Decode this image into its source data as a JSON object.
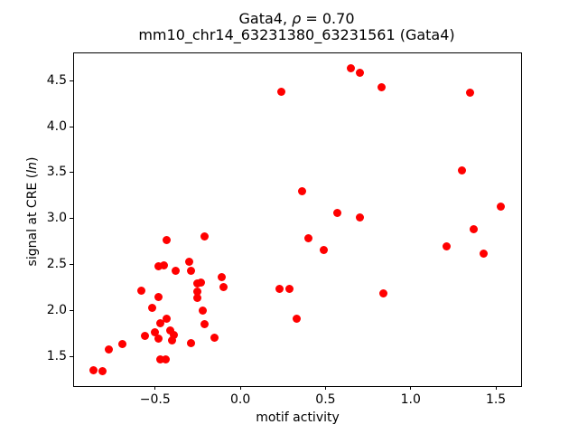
{
  "figure": {
    "title_prefix": "Gata4, ",
    "title_rho": "ρ",
    "title_eq": " = 0.70",
    "title_line2": "mm10_chr14_63231380_63231561 (Gata4)",
    "xlabel": "motif activity",
    "ylabel_prefix": "signal at CRE (",
    "ylabel_italic": "ln",
    "ylabel_suffix": ")"
  },
  "chart_data": {
    "type": "scatter",
    "title": "Gata4, ρ = 0.70",
    "subtitle": "mm10_chr14_63231380_63231561 (Gata4)",
    "xlabel": "motif activity",
    "ylabel": "signal at CRE (ln)",
    "correlation_rho": 0.7,
    "xlim": [
      -0.976,
      1.648
    ],
    "ylim": [
      1.183,
      4.803
    ],
    "x_ticks": [
      -0.5,
      0.0,
      0.5,
      1.0,
      1.5
    ],
    "y_ticks": [
      1.5,
      2.0,
      2.5,
      3.0,
      3.5,
      4.0,
      4.5
    ],
    "grid": false,
    "legend": false,
    "marker_color": "#ff0000",
    "points": [
      [
        -0.43,
        2.77
      ],
      [
        -0.21,
        2.81
      ],
      [
        -0.48,
        2.48
      ],
      [
        -0.45,
        2.49
      ],
      [
        -0.38,
        2.43
      ],
      [
        -0.3,
        2.53
      ],
      [
        -0.29,
        2.43
      ],
      [
        -0.25,
        2.29
      ],
      [
        -0.23,
        2.3
      ],
      [
        -0.25,
        2.21
      ],
      [
        -0.25,
        2.14
      ],
      [
        -0.11,
        2.36
      ],
      [
        -0.1,
        2.26
      ],
      [
        -0.58,
        2.22
      ],
      [
        -0.48,
        2.15
      ],
      [
        -0.52,
        2.03
      ],
      [
        -0.22,
        2.0
      ],
      [
        -0.43,
        1.91
      ],
      [
        -0.47,
        1.86
      ],
      [
        -0.21,
        1.85
      ],
      [
        -0.41,
        1.78
      ],
      [
        -0.39,
        1.73
      ],
      [
        -0.4,
        1.67
      ],
      [
        -0.5,
        1.76
      ],
      [
        -0.48,
        1.69
      ],
      [
        -0.56,
        1.72
      ],
      [
        -0.29,
        1.65
      ],
      [
        -0.15,
        1.7
      ],
      [
        -0.69,
        1.64
      ],
      [
        -0.77,
        1.58
      ],
      [
        -0.47,
        1.47
      ],
      [
        -0.44,
        1.47
      ],
      [
        -0.86,
        1.35
      ],
      [
        -0.81,
        1.34
      ],
      [
        0.24,
        4.38
      ],
      [
        0.65,
        4.64
      ],
      [
        0.7,
        4.59
      ],
      [
        0.83,
        4.43
      ],
      [
        1.35,
        4.37
      ],
      [
        1.3,
        3.52
      ],
      [
        0.36,
        3.3
      ],
      [
        0.57,
        3.06
      ],
      [
        0.7,
        3.01
      ],
      [
        1.53,
        3.13
      ],
      [
        1.37,
        2.88
      ],
      [
        0.4,
        2.79
      ],
      [
        0.49,
        2.66
      ],
      [
        1.21,
        2.7
      ],
      [
        1.43,
        2.62
      ],
      [
        0.23,
        2.24
      ],
      [
        0.29,
        2.24
      ],
      [
        0.84,
        2.19
      ],
      [
        0.33,
        1.91
      ]
    ]
  }
}
